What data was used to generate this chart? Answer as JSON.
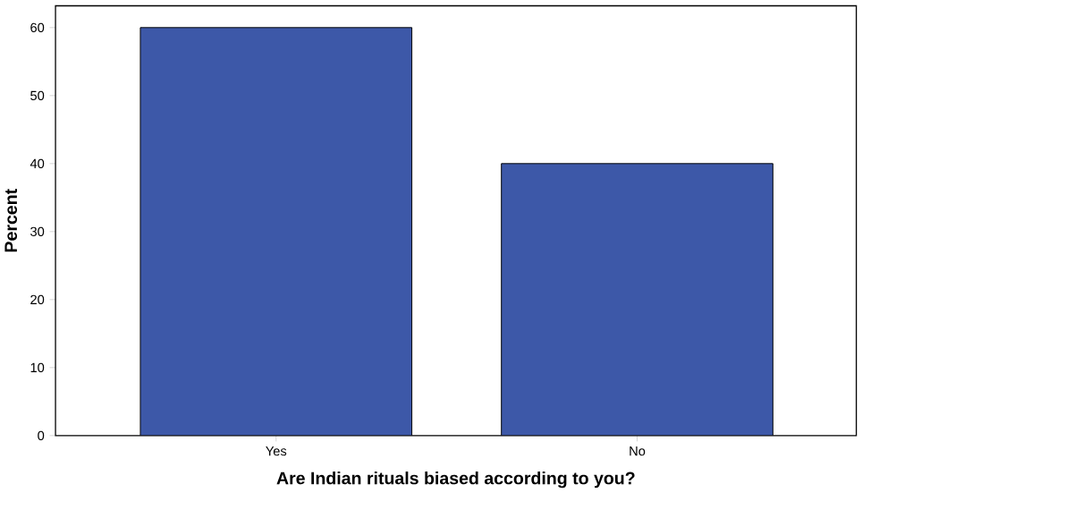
{
  "chart_data": {
    "type": "bar",
    "xlabel": "Are Indian rituals biased according to you?",
    "ylabel": "Percent",
    "categories": [
      "Yes",
      "No"
    ],
    "values": [
      60,
      40
    ],
    "color": "#3d58a8",
    "ylim": [
      0,
      63.2
    ],
    "yticks": [
      0,
      10,
      20,
      30,
      40,
      50,
      60
    ]
  }
}
